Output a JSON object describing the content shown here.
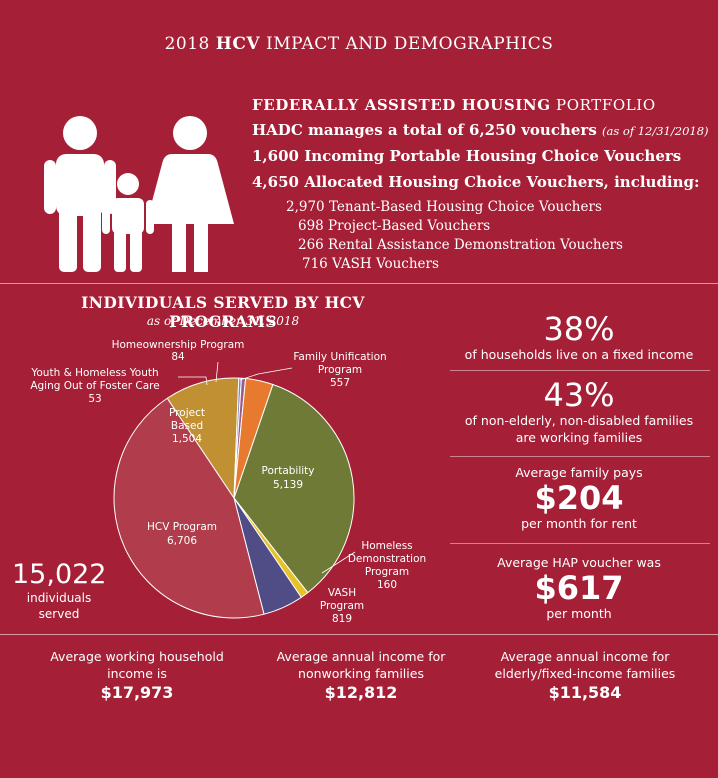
{
  "title": {
    "prefix": "2018 ",
    "bold": "HCV",
    "suffix": " IMPACT AND DEMOGRAPHICS"
  },
  "portfolio": {
    "heading_bold": "FEDERALLY ASSISTED HOUSING",
    "heading_rest": " PORTFOLIO",
    "line1": "HADC manages a total of 6,250 vouchers",
    "line1_note": "(as of 12/31/2018)",
    "line2": "1,600 Incoming Portable Housing Choice Vouchers",
    "line3": "4,650 Allocated Housing Choice Vouchers, including:",
    "sub": [
      "2,970 Tenant-Based Housing Choice Vouchers",
      "698 Project-Based Vouchers",
      "266 Rental Assistance Demonstration Vouchers",
      "716 VASH Vouchers"
    ]
  },
  "individuals": {
    "title": "INDIVIDUALS SERVED BY HCV PROGRAMS",
    "subtitle": "as of December 31, 2018",
    "total": "15,022",
    "total_label": "individuals served"
  },
  "chart_data": {
    "type": "pie",
    "title": "INDIVIDUALS SERVED BY HCV PROGRAMS",
    "slices": [
      {
        "name": "Portability",
        "value": 5139,
        "label": "5,139",
        "color": "#6e7a35"
      },
      {
        "name": "Homeless Demonstration Program",
        "value": 160,
        "label": "160",
        "color": "#e5c12a"
      },
      {
        "name": "VASH Program",
        "value": 819,
        "label": "819",
        "color": "#4f4c86"
      },
      {
        "name": "HCV Program",
        "value": 6706,
        "label": "6,706",
        "color": "#b03c4c"
      },
      {
        "name": "Project Based",
        "value": 1504,
        "label": "1,504",
        "color": "#c09032"
      },
      {
        "name": "Youth & Homeless Youth Aging Out of Foster Care",
        "value": 53,
        "label": "53",
        "color": "#7f86c2"
      },
      {
        "name": "Homeownership Program",
        "value": 84,
        "label": "84",
        "color": "#9a5c88"
      },
      {
        "name": "Family Unification Program",
        "value": 557,
        "label": "557",
        "color": "#e87a2f"
      }
    ]
  },
  "stats": {
    "fixed_pct": "38%",
    "fixed_text": "of households live on a fixed income",
    "working_pct": "43%",
    "working_text1": "of non-elderly, non-disabled families",
    "working_text2": "are working families",
    "pays_label": "Average family pays",
    "pays_value": "$204",
    "pays_unit": "per month for rent",
    "hap_label": "Average HAP voucher was",
    "hap_value": "$617",
    "hap_unit": "per month"
  },
  "income": [
    {
      "line1": "Average working household",
      "line2": "income is",
      "value": "$17,973"
    },
    {
      "line1": "Average annual income for",
      "line2": "nonworking families",
      "value": "$12,812"
    },
    {
      "line1": "Average annual income for",
      "line2": "elderly/fixed-income families",
      "value": "$11,584"
    }
  ]
}
